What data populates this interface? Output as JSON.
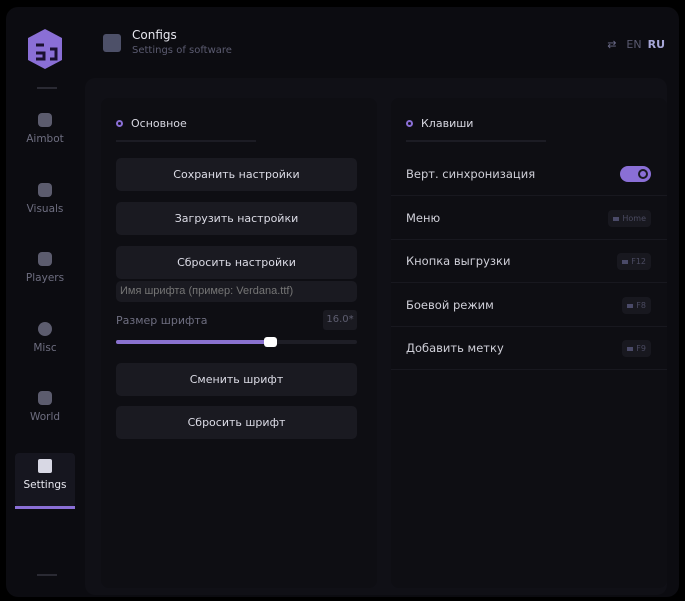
{
  "header": {
    "title": "Configs",
    "subtitle": "Settings of software",
    "lang_en": "EN",
    "lang_ru": "RU"
  },
  "sidebar": {
    "items": [
      {
        "label": "Aimbot",
        "icon": "skull-icon"
      },
      {
        "label": "Visuals",
        "icon": "vr-icon"
      },
      {
        "label": "Players",
        "icon": "users-icon"
      },
      {
        "label": "Misc",
        "icon": "chat-icon"
      },
      {
        "label": "World",
        "icon": "briefcase-icon"
      },
      {
        "label": "Settings",
        "icon": "list-icon",
        "active": true
      }
    ]
  },
  "main": {
    "section": "Основное",
    "buttons": [
      "Сохранить настройки",
      "Загрузить настройки",
      "Сбросить настройки"
    ],
    "font_input_placeholder": "Имя шрифта (пример: Verdana.ttf)",
    "font_size_label": "Размер шрифта",
    "font_size_value": "16.0*",
    "font_size_fraction": 0.64,
    "buttons2": [
      "Сменить шрифт",
      "Сбросить шрифт"
    ]
  },
  "keys": {
    "section": "Клавиши",
    "vsync_label": "Верт. синхронизация",
    "vsync_on": true,
    "rows": [
      {
        "label": "Меню",
        "key": "Home"
      },
      {
        "label": "Кнопка выгрузки",
        "key": "F12"
      },
      {
        "label": "Боевой режим",
        "key": "F8"
      },
      {
        "label": "Добавить метку",
        "key": "F9"
      }
    ]
  },
  "colors": {
    "accent": "#8a6fd6"
  }
}
